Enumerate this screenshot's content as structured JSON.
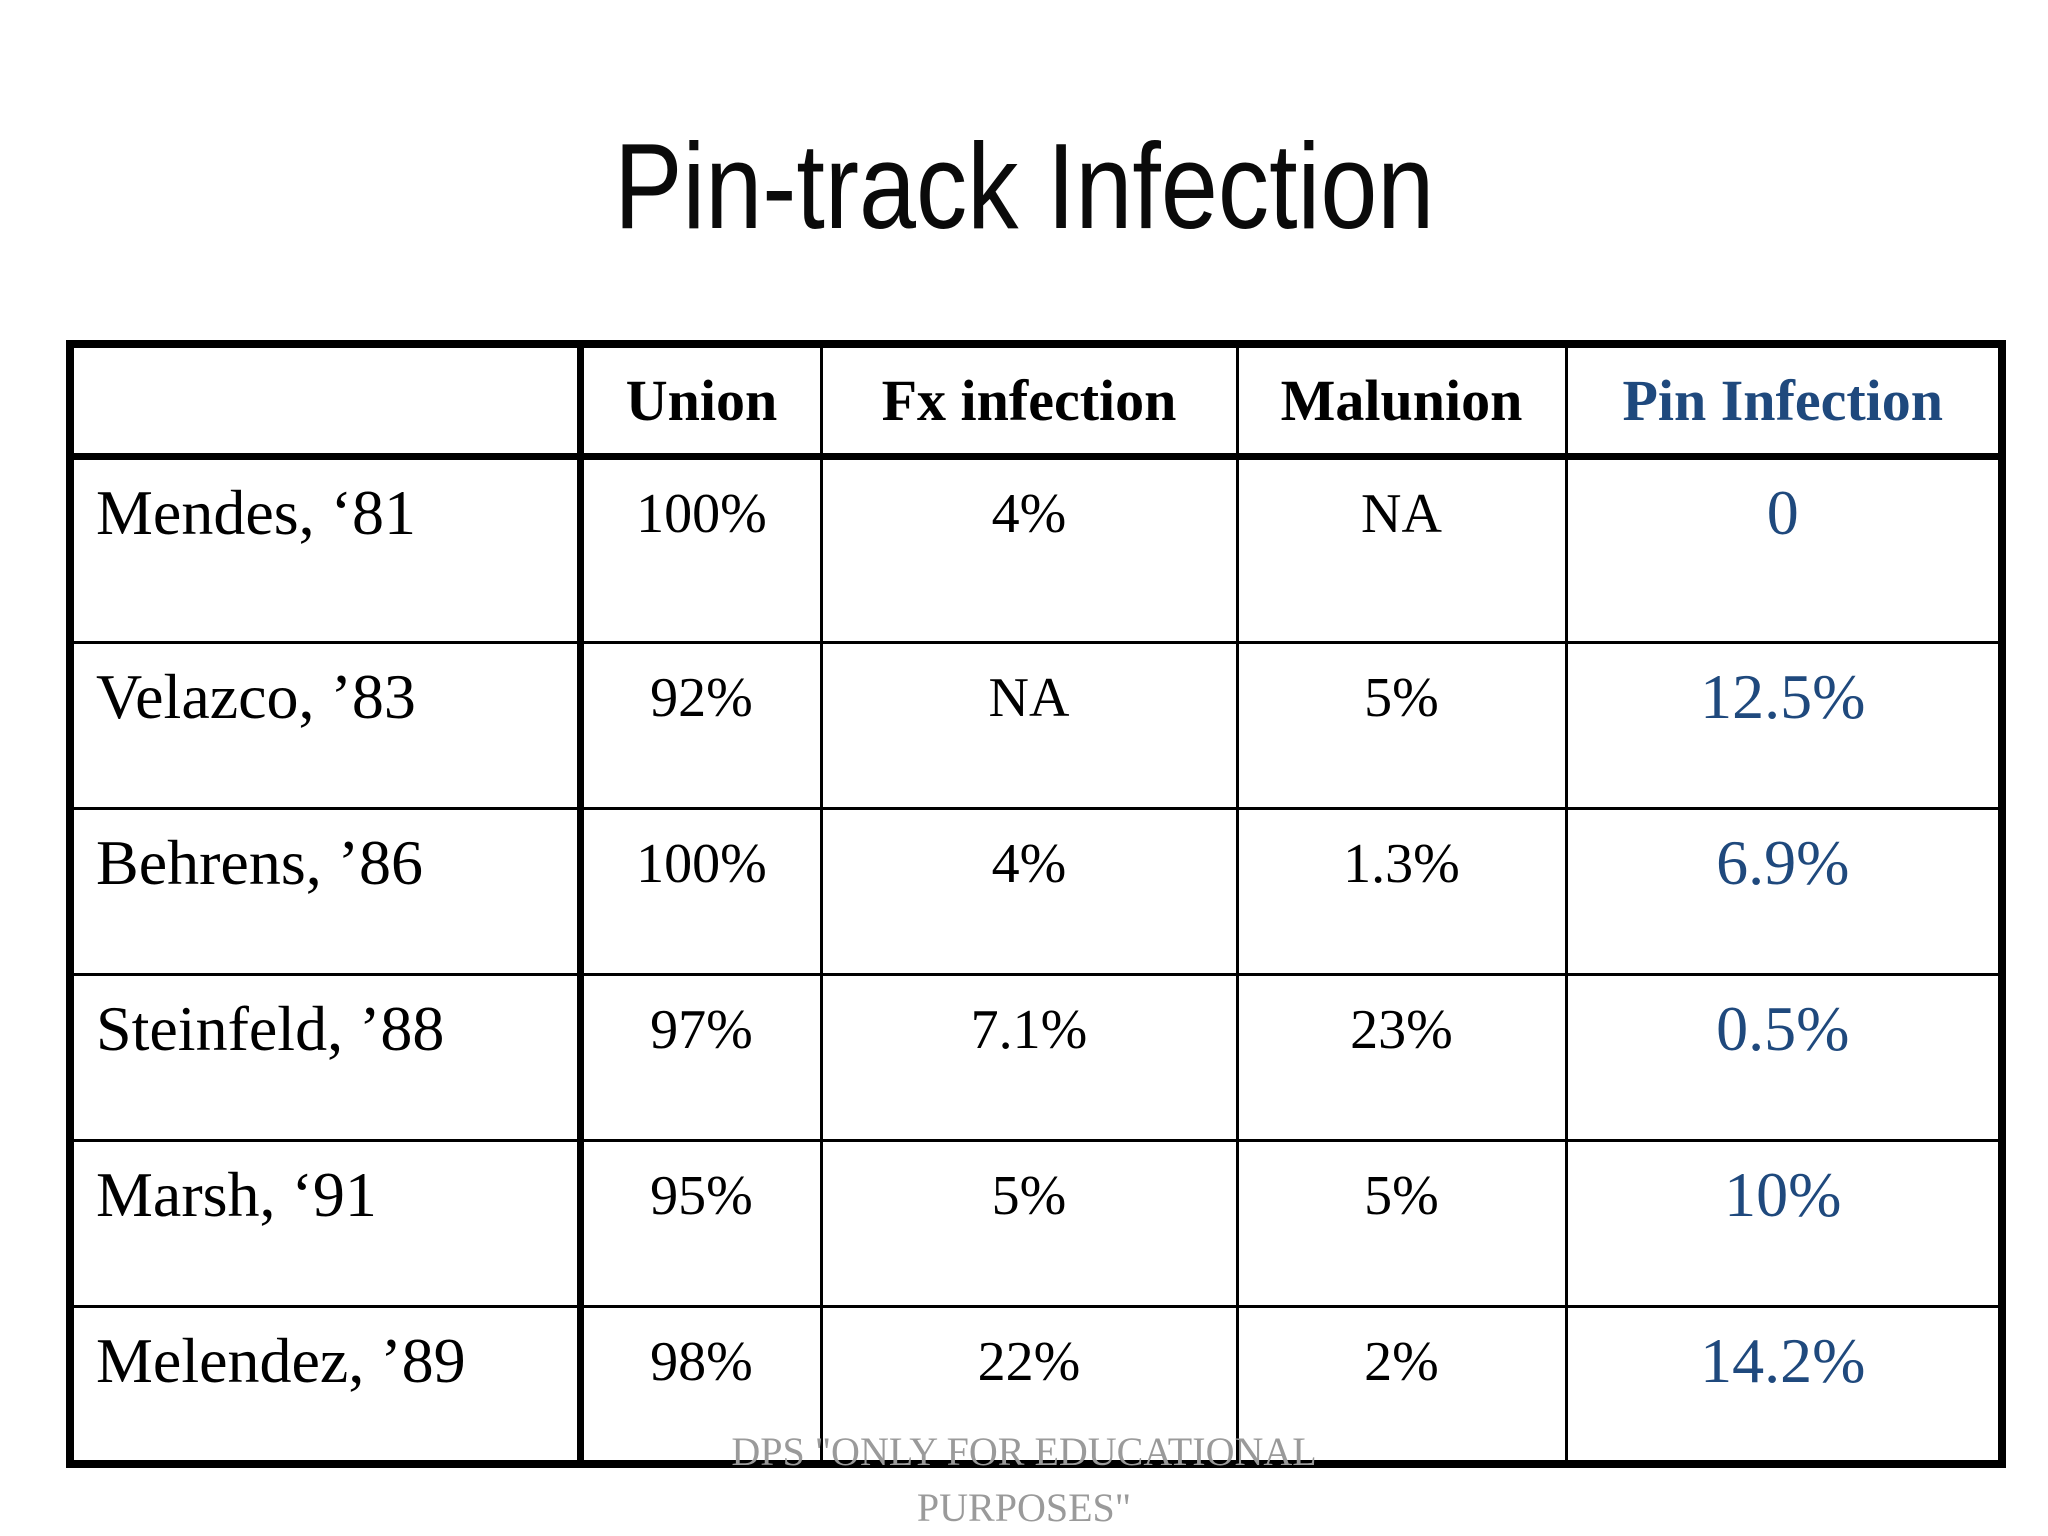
{
  "slide": {
    "title": "Pin-track Infection",
    "watermark_line1": "DPS \"ONLY FOR EDUCATIONAL",
    "watermark_line2": "PURPOSES\""
  },
  "colors": {
    "accent_blue": "#1F497D",
    "text_black": "#000000",
    "watermark_gray": "#9a9a9a",
    "border_black": "#000000",
    "background": "#ffffff"
  },
  "table": {
    "columns": [
      "",
      "Union",
      "Fx infection",
      "Malunion",
      "Pin Infection"
    ],
    "rows": [
      [
        "Mendes, ‘81",
        "100%",
        "4%",
        "NA",
        "0"
      ],
      [
        "Velazco, ’83",
        "92%",
        "NA",
        "5%",
        "12.5%"
      ],
      [
        "Behrens, ’86",
        "100%",
        "4%",
        "1.3%",
        "6.9%"
      ],
      [
        "Steinfeld, ’88",
        "97%",
        "7.1%",
        "23%",
        "0.5%"
      ],
      [
        "Marsh, ‘91",
        "95%",
        "5%",
        "5%",
        "10%"
      ],
      [
        "Melendez, ’89",
        "98%",
        "22%",
        "2%",
        "14.2%"
      ]
    ]
  }
}
